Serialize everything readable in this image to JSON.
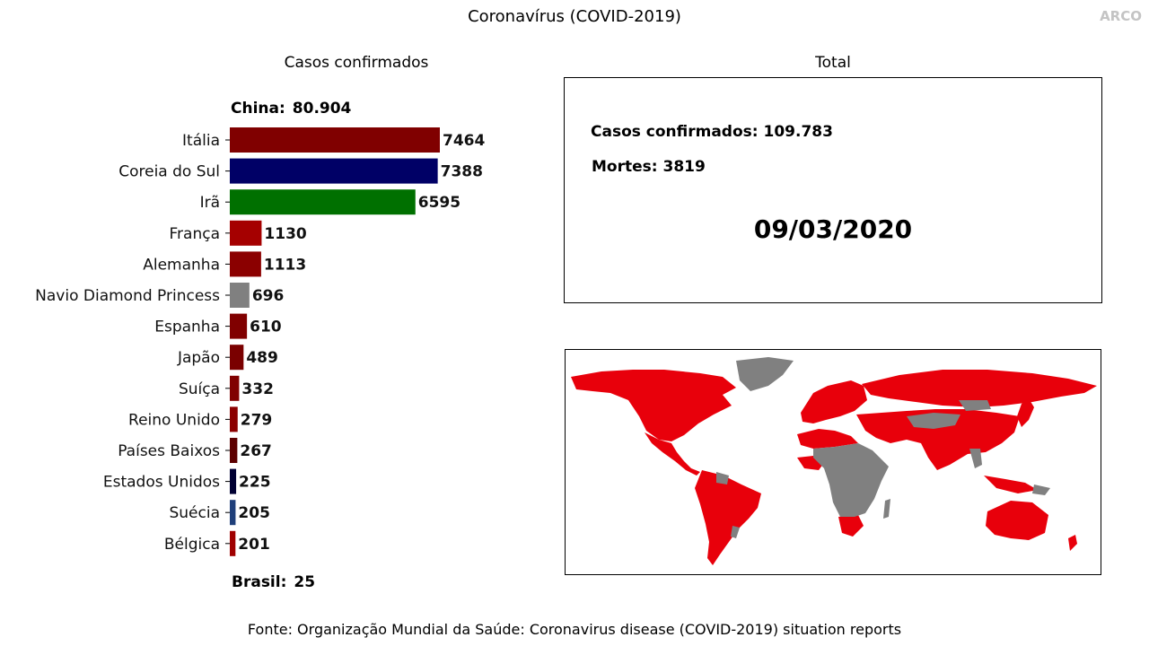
{
  "header": {
    "title": "Coronavírus (COVID-2019)",
    "watermark": "ARCO"
  },
  "left_panel": {
    "title": "Casos confirmados",
    "china_label": "China:",
    "china_value": "80.904",
    "brasil_label": "Brasil:",
    "brasil_value": "25"
  },
  "chart_data": {
    "type": "bar",
    "orientation": "horizontal",
    "title": "Casos confirmados",
    "categories": [
      "Itália",
      "Coreia do Sul",
      "Irã",
      "França",
      "Alemanha",
      "Navio Diamond Princess",
      "Espanha",
      "Japão",
      "Suíça",
      "Reino Unido",
      "Países Baixos",
      "Estados Unidos",
      "Suécia",
      "Bélgica"
    ],
    "values": [
      7464,
      7388,
      6595,
      1130,
      1113,
      696,
      610,
      489,
      332,
      279,
      267,
      225,
      205,
      201
    ],
    "colors": [
      "#800000",
      "#000066",
      "#007000",
      "#a50000",
      "#8b0000",
      "#808080",
      "#800000",
      "#7a0000",
      "#800000",
      "#8b0000",
      "#5c0000",
      "#000033",
      "#1f3f7a",
      "#a00000"
    ],
    "xlim": [
      0,
      7464
    ],
    "grid": false,
    "data_labels": true
  },
  "right_panel": {
    "title": "Total",
    "cases_label": "Casos confirmados:",
    "cases_value": "109.783",
    "deaths_label": "Mortes:",
    "deaths_value": "3819",
    "date": "09/03/2020"
  },
  "map": {
    "affected_color": "#e8000b",
    "unaffected_color": "#808080"
  },
  "footer": {
    "source": "Fonte: Organização Mundial da Saúde: Coronavirus disease (COVID-2019) situation reports"
  }
}
